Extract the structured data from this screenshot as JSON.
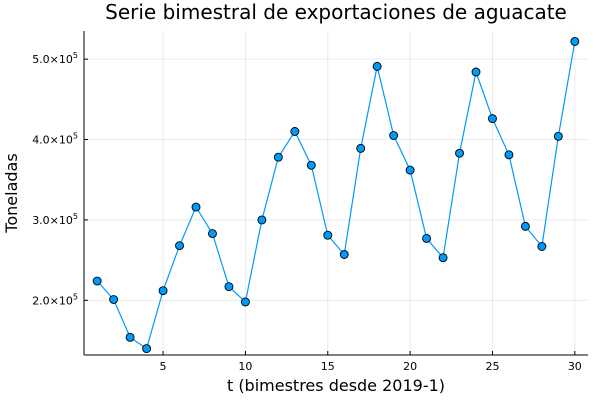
{
  "chart_data": {
    "type": "line",
    "title": "Serie bimestral de exportaciones de aguacate",
    "xlabel": "t (bimestres desde 2019-1)",
    "ylabel": "Toneladas",
    "xlim": [
      0.2,
      30.8
    ],
    "ylim": [
      132000,
      535000
    ],
    "xticks": [
      5,
      10,
      15,
      20,
      25,
      30
    ],
    "xtick_labels": [
      "5",
      "10",
      "15",
      "20",
      "25",
      "30"
    ],
    "yticks": [
      200000,
      300000,
      400000,
      500000
    ],
    "ytick_labels": [
      {
        "mantissa": "2.0×10",
        "exp": "5"
      },
      {
        "mantissa": "3.0×10",
        "exp": "5"
      },
      {
        "mantissa": "4.0×10",
        "exp": "5"
      },
      {
        "mantissa": "5.0×10",
        "exp": "5"
      }
    ],
    "grid": true,
    "legend": "none",
    "series": [
      {
        "color": "#009AFA",
        "marker": "circle",
        "x": [
          1,
          2,
          3,
          4,
          5,
          6,
          7,
          8,
          9,
          10,
          11,
          12,
          13,
          14,
          15,
          16,
          17,
          18,
          19,
          20,
          21,
          22,
          23,
          24,
          25,
          26,
          27,
          28,
          29,
          30
        ],
        "y": [
          224000,
          201000,
          154000,
          140000,
          212000,
          268000,
          316000,
          283000,
          217000,
          198000,
          300000,
          378000,
          410000,
          368000,
          281000,
          257000,
          389000,
          491000,
          405000,
          362000,
          277000,
          253000,
          383000,
          484000,
          426000,
          381000,
          292000,
          267000,
          404000,
          522000
        ]
      }
    ]
  }
}
